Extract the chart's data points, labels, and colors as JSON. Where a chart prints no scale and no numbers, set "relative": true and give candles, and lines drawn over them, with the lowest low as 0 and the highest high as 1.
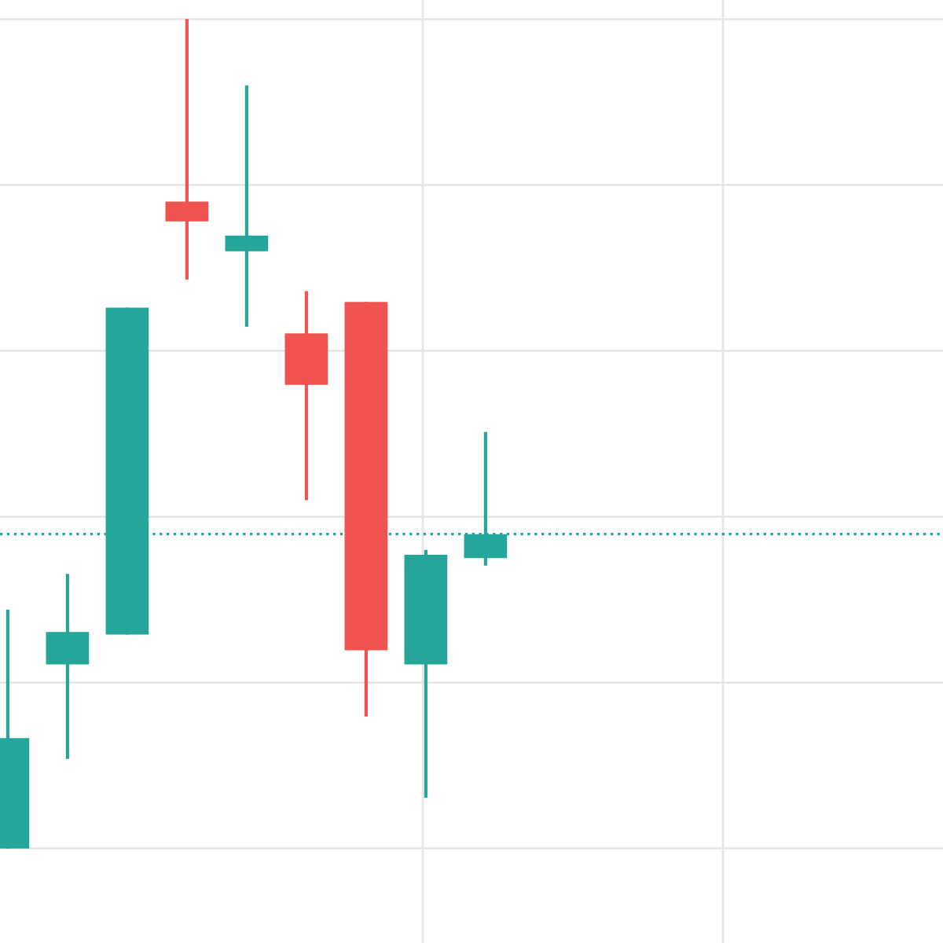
{
  "chart_data": {
    "type": "candlestick",
    "relative": true,
    "categories": [
      null,
      null,
      null,
      null,
      null,
      null,
      null,
      null,
      null
    ],
    "ohlc": [
      [
        0,
        0.288,
        0,
        0.133
      ],
      [
        0.222,
        0.331,
        0.108,
        0.261
      ],
      [
        0.258,
        0.652,
        0.258,
        0.652
      ],
      [
        0.78,
        1,
        0.686,
        0.756
      ],
      [
        0.72,
        0.92,
        0.629,
        0.739
      ],
      [
        0.621,
        0.672,
        0.42,
        0.559
      ],
      [
        0.659,
        0.659,
        0.159,
        0.239
      ],
      [
        0.222,
        0.36,
        0.061,
        0.354
      ],
      [
        0.35,
        0.502,
        0.341,
        0.379
      ]
    ],
    "colors": [
      "#26a69a",
      "#26a69a",
      "#26a69a",
      "#ef5350",
      "#26a69a",
      "#ef5350",
      "#ef5350",
      "#26a69a",
      "#26a69a"
    ],
    "ref_lines": [
      {
        "axis": "y",
        "value": 0.379,
        "color": "#26a69a",
        "line_style": "dotted"
      }
    ],
    "grid": true
  }
}
